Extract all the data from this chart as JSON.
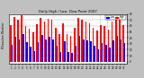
{
  "title": "Daily High / Low  Dew Point 2007",
  "left_label": "Milwaukee Weather",
  "x_labels": [
    "1",
    "2",
    "3",
    "4",
    "5",
    "6",
    "7",
    "8",
    "9",
    "10",
    "11",
    "12",
    "13",
    "14",
    "15",
    "16",
    "17",
    "18",
    "19",
    "20",
    "21",
    "22",
    "23",
    "24",
    "25",
    "26",
    "27",
    "28",
    "29",
    "30",
    "31"
  ],
  "high_values": [
    62,
    75,
    70,
    78,
    60,
    55,
    50,
    63,
    74,
    67,
    72,
    70,
    57,
    47,
    65,
    47,
    44,
    57,
    74,
    70,
    67,
    64,
    57,
    52,
    62,
    60,
    54,
    67,
    74,
    70,
    62
  ],
  "low_values": [
    28,
    42,
    38,
    47,
    32,
    25,
    18,
    32,
    45,
    37,
    42,
    38,
    26,
    16,
    34,
    16,
    14,
    26,
    44,
    38,
    36,
    34,
    26,
    21,
    31,
    28,
    24,
    36,
    44,
    38,
    31
  ],
  "high_color": "#ff0000",
  "low_color": "#0000ff",
  "fig_bg": "#c0c0c0",
  "plot_bg": "#ffffff",
  "ylim": [
    -4,
    80
  ],
  "yticks": [
    0,
    10,
    20,
    30,
    40,
    50,
    60,
    70,
    80
  ],
  "bar_width": 0.38,
  "dpi": 100,
  "figsize": [
    1.6,
    0.87
  ],
  "dotted_lines": [
    23.5,
    25.5
  ]
}
